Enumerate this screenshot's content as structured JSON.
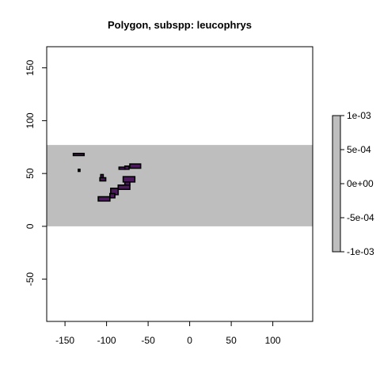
{
  "chart_data": {
    "type": "heatmap",
    "title": "Polygon, subspp: leucophrys",
    "xlabel": "",
    "ylabel": "",
    "xlim": [
      -172,
      148
    ],
    "ylim": [
      -90,
      170
    ],
    "xticks": [
      -150,
      -100,
      -50,
      0,
      50,
      100
    ],
    "xtick_labels": [
      "-150",
      "-100",
      "-50",
      "0",
      "50",
      "100"
    ],
    "yticks": [
      -50,
      0,
      50,
      100,
      150
    ],
    "ytick_labels": [
      "-50",
      "0",
      "50",
      "100",
      "150"
    ],
    "grid": false,
    "band": {
      "lon": [
        -172,
        148
      ],
      "lat": [
        0,
        77
      ],
      "value": 0,
      "color": "#bebebe"
    },
    "polygons": [
      {
        "lon": [
          -140,
          -127
        ],
        "lat": [
          67,
          69
        ]
      },
      {
        "lon": [
          -134,
          -132
        ],
        "lat": [
          52,
          54
        ]
      },
      {
        "lon": [
          -107,
          -104
        ],
        "lat": [
          46,
          49
        ]
      },
      {
        "lon": [
          -108,
          -101
        ],
        "lat": [
          43,
          46
        ]
      },
      {
        "lon": [
          -85,
          -78
        ],
        "lat": [
          54,
          56
        ]
      },
      {
        "lon": [
          -78,
          -73
        ],
        "lat": [
          54,
          57
        ]
      },
      {
        "lon": [
          -72,
          -59
        ],
        "lat": [
          55,
          59
        ]
      },
      {
        "lon": [
          -80,
          -66
        ],
        "lat": [
          42,
          47
        ]
      },
      {
        "lon": [
          -78,
          -72
        ],
        "lat": [
          39,
          42
        ]
      },
      {
        "lon": [
          -86,
          -72
        ],
        "lat": [
          35,
          39
        ]
      },
      {
        "lon": [
          -95,
          -86
        ],
        "lat": [
          30,
          36
        ]
      },
      {
        "lon": [
          -96,
          -90
        ],
        "lat": [
          27,
          31
        ]
      },
      {
        "lon": [
          -110,
          -96
        ],
        "lat": [
          24,
          28
        ]
      }
    ],
    "polygon_fill": "#4b1a5a",
    "polygon_stroke": "#000000",
    "legend": {
      "placement": "right",
      "range": [
        -0.001,
        0.001
      ],
      "ticks": [
        0.001,
        0.0005,
        0,
        -0.0005,
        -0.001
      ],
      "tick_labels": [
        "1e-03",
        "5e-04",
        "0e+00",
        "-5e-04",
        "-1e-03"
      ],
      "color": "#bebebe"
    }
  }
}
